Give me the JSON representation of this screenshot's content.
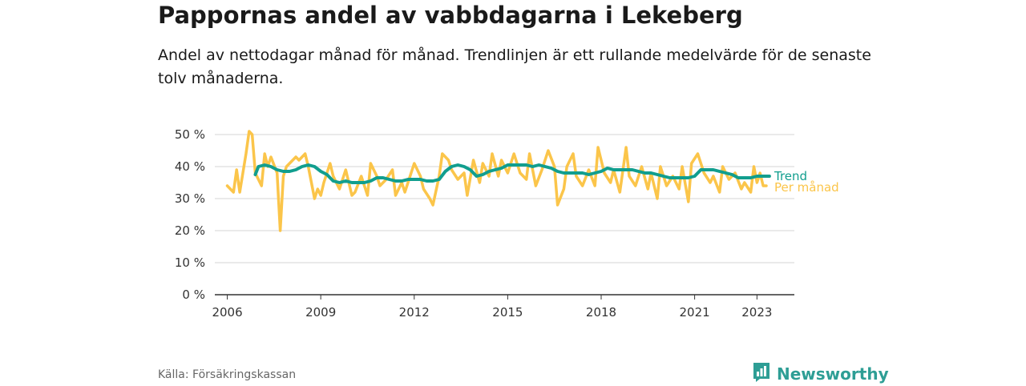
{
  "chart_data": {
    "type": "line",
    "title": "Pappornas andel av vabbdagarna i Lekeberg",
    "subtitle": "Andel av nettodagar månad för månad. Trendlinjen är ett rullande medelvärde för de senaste tolv månaderna.",
    "y_ticks": [
      {
        "value": 0,
        "label": "0 %"
      },
      {
        "value": 10,
        "label": "10 %"
      },
      {
        "value": 20,
        "label": "20 %"
      },
      {
        "value": 30,
        "label": "30 %"
      },
      {
        "value": 40,
        "label": "40 %"
      },
      {
        "value": 50,
        "label": "50 %"
      }
    ],
    "ylim": [
      0,
      50
    ],
    "xlim": [
      2005.6,
      2024.2
    ],
    "x_ticks": [
      {
        "value": 2006,
        "label": "2006"
      },
      {
        "value": 2009,
        "label": "2009"
      },
      {
        "value": 2012,
        "label": "2012"
      },
      {
        "value": 2015,
        "label": "2015"
      },
      {
        "value": 2018,
        "label": "2018"
      },
      {
        "value": 2021,
        "label": "2021"
      },
      {
        "value": 2023,
        "label": "2023"
      }
    ],
    "grid": true,
    "series": [
      {
        "name": "Per månad",
        "color": "#fbc54a",
        "x": [
          2006.0,
          2006.2,
          2006.3,
          2006.4,
          2006.6,
          2006.7,
          2006.8,
          2006.9,
          2007.1,
          2007.2,
          2007.3,
          2007.4,
          2007.6,
          2007.7,
          2007.8,
          2007.9,
          2008.1,
          2008.2,
          2008.3,
          2008.5,
          2008.6,
          2008.8,
          2008.9,
          2009.0,
          2009.1,
          2009.3,
          2009.4,
          2009.6,
          2009.8,
          2010.0,
          2010.1,
          2010.3,
          2010.5,
          2010.6,
          2010.8,
          2010.9,
          2011.1,
          2011.3,
          2011.4,
          2011.6,
          2011.7,
          2011.9,
          2012.0,
          2012.2,
          2012.3,
          2012.5,
          2012.6,
          2012.8,
          2012.9,
          2013.1,
          2013.2,
          2013.4,
          2013.6,
          2013.7,
          2013.9,
          2014.1,
          2014.2,
          2014.4,
          2014.5,
          2014.7,
          2014.8,
          2015.0,
          2015.2,
          2015.4,
          2015.6,
          2015.7,
          2015.9,
          2016.1,
          2016.3,
          2016.5,
          2016.6,
          2016.8,
          2016.9,
          2017.1,
          2017.2,
          2017.4,
          2017.6,
          2017.8,
          2017.9,
          2018.1,
          2018.3,
          2018.4,
          2018.6,
          2018.8,
          2018.9,
          2019.1,
          2019.3,
          2019.5,
          2019.6,
          2019.8,
          2019.9,
          2020.1,
          2020.3,
          2020.5,
          2020.6,
          2020.8,
          2020.9,
          2021.1,
          2021.3,
          2021.5,
          2021.6,
          2021.8,
          2021.9,
          2022.1,
          2022.3,
          2022.5,
          2022.6,
          2022.8,
          2022.9,
          2023.0,
          2023.1,
          2023.2,
          2023.3
        ],
        "values": [
          34,
          32,
          39,
          32,
          44,
          51,
          50,
          38,
          34,
          44,
          40,
          43,
          38,
          20,
          37,
          40,
          42,
          43,
          42,
          44,
          40,
          30,
          33,
          31,
          35,
          41,
          37,
          33,
          39,
          31,
          32,
          37,
          31,
          41,
          37,
          34,
          36,
          39,
          31,
          35,
          32,
          38,
          41,
          37,
          33,
          30,
          28,
          37,
          44,
          42,
          39,
          36,
          38,
          31,
          42,
          35,
          41,
          37,
          44,
          37,
          42,
          38,
          44,
          38,
          36,
          44,
          34,
          39,
          45,
          40,
          28,
          33,
          40,
          44,
          37,
          34,
          39,
          34,
          46,
          38,
          35,
          39,
          32,
          46,
          37,
          34,
          40,
          33,
          38,
          30,
          40,
          34,
          37,
          33,
          40,
          29,
          41,
          44,
          38,
          35,
          37,
          32,
          40,
          36,
          38,
          33,
          35,
          32,
          40,
          35,
          38,
          34,
          34
        ]
      },
      {
        "name": "Trend",
        "color": "#119e8e",
        "x": [
          2006.9,
          2007.0,
          2007.2,
          2007.4,
          2007.6,
          2007.8,
          2008.0,
          2008.2,
          2008.4,
          2008.6,
          2008.8,
          2009.0,
          2009.2,
          2009.4,
          2009.6,
          2009.8,
          2010.0,
          2010.2,
          2010.4,
          2010.6,
          2010.8,
          2011.0,
          2011.2,
          2011.4,
          2011.6,
          2011.8,
          2012.0,
          2012.2,
          2012.4,
          2012.6,
          2012.8,
          2013.0,
          2013.2,
          2013.4,
          2013.6,
          2013.8,
          2014.0,
          2014.2,
          2014.4,
          2014.6,
          2014.8,
          2015.0,
          2015.2,
          2015.4,
          2015.6,
          2015.8,
          2016.0,
          2016.2,
          2016.4,
          2016.6,
          2016.8,
          2017.0,
          2017.2,
          2017.4,
          2017.6,
          2017.8,
          2018.0,
          2018.2,
          2018.4,
          2018.6,
          2018.8,
          2019.0,
          2019.2,
          2019.4,
          2019.6,
          2019.8,
          2020.0,
          2020.2,
          2020.4,
          2020.6,
          2020.8,
          2021.0,
          2021.2,
          2021.4,
          2021.6,
          2021.8,
          2022.0,
          2022.2,
          2022.4,
          2022.6,
          2022.8,
          2023.0,
          2023.2,
          2023.4
        ],
        "values": [
          37.5,
          40.0,
          40.5,
          40.0,
          39.0,
          38.5,
          38.5,
          39.0,
          40.0,
          40.5,
          40.0,
          38.5,
          37.5,
          35.5,
          35.0,
          35.5,
          35.0,
          35.0,
          35.0,
          35.5,
          36.5,
          36.5,
          36.0,
          35.5,
          35.5,
          36.0,
          36.0,
          36.0,
          35.5,
          35.5,
          36.0,
          38.5,
          40.0,
          40.5,
          40.0,
          39.0,
          37.0,
          37.5,
          38.5,
          39.0,
          39.5,
          40.5,
          40.5,
          40.5,
          40.5,
          40.0,
          40.5,
          40.0,
          39.5,
          38.5,
          38.0,
          38.0,
          38.0,
          38.0,
          37.5,
          38.0,
          38.5,
          39.5,
          39.0,
          39.0,
          39.0,
          39.0,
          38.5,
          38.0,
          38.0,
          37.5,
          37.0,
          36.5,
          36.5,
          36.5,
          36.5,
          37.0,
          39.0,
          39.0,
          39.0,
          38.5,
          38.0,
          37.5,
          36.5,
          36.5,
          36.5,
          37.0,
          37.0,
          37.0
        ]
      }
    ]
  },
  "footer": {
    "source": "Källa: Försäkringskassan",
    "brand": "Newsworthy",
    "brand_color": "#2e9e95",
    "brand_icon": "bar-chart-logo-icon"
  }
}
